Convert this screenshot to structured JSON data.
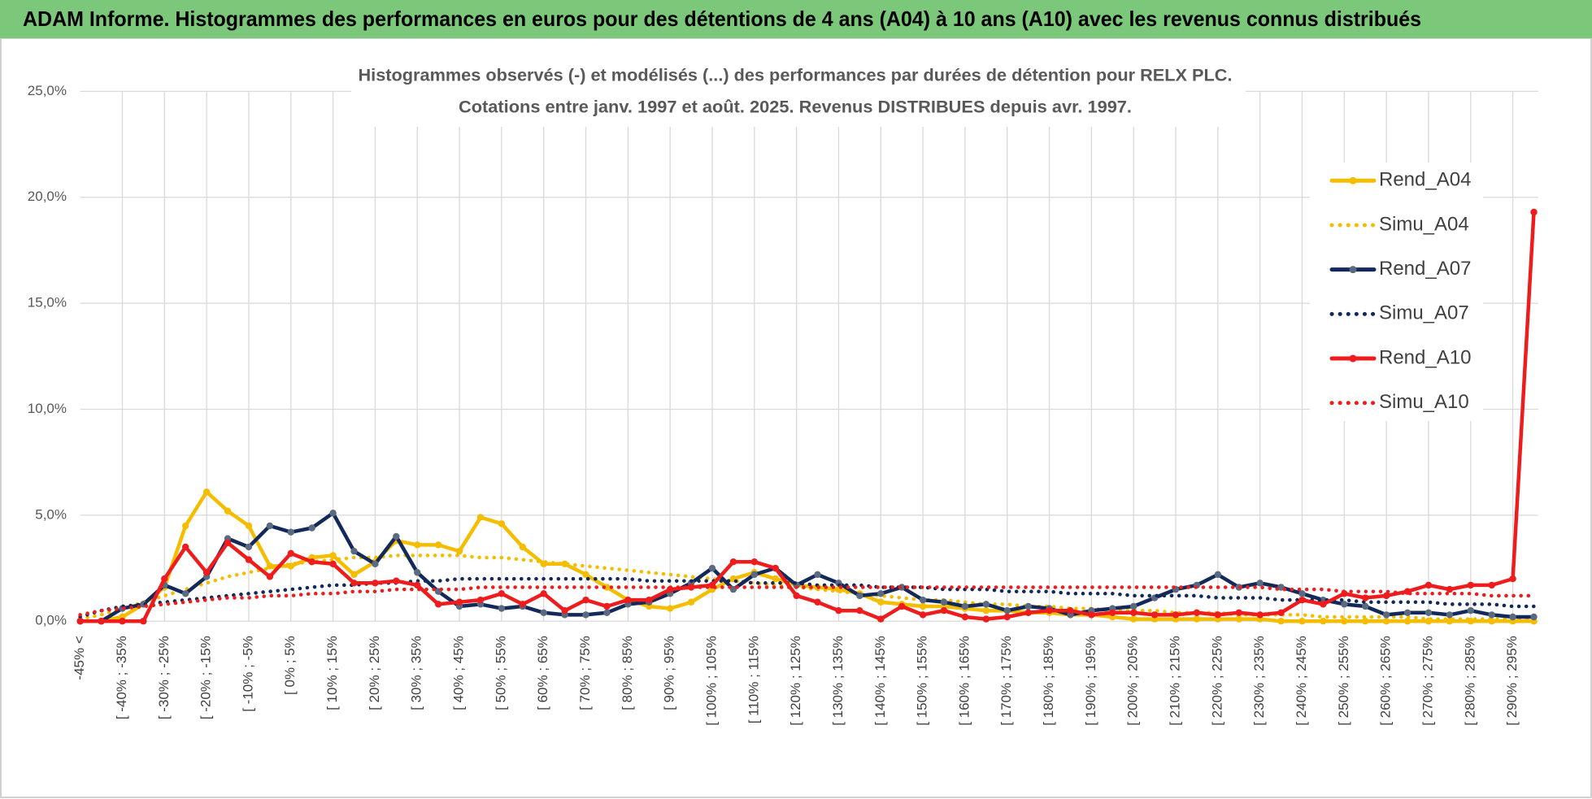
{
  "chart_data": {
    "type": "line",
    "title": "ADAM Informe. Histogrammes des performances en euros pour des détentions de 4 ans (A04) à 10 ans (A10) avec les revenus connus distribués",
    "chart_title": [
      "Histogrammes observés (-) et modélisés (...) des performances par durées de détention pour RELX PLC.",
      "Cotations entre janv. 1997 et août. 2025. Revenus DISTRIBUES depuis avr. 1997."
    ],
    "categories": [
      "-45% <",
      null,
      "[ -40% ; -35%",
      null,
      "[ -30% ; -25%",
      null,
      "[ -20% ; -15%",
      null,
      "[ -10% ; -5%",
      null,
      "[ 0% ; 5%",
      null,
      "[ 10% ; 15%",
      null,
      "[ 20% ; 25%",
      null,
      "[ 30% ; 35%",
      null,
      "[ 40% ; 45%",
      null,
      "[ 50% ; 55%",
      null,
      "[ 60% ; 65%",
      null,
      "[ 70% ; 75%",
      null,
      "[ 80% ; 85%",
      null,
      "[ 90% ; 95%",
      null,
      "[ 100% ; 105%",
      null,
      "[ 110% ; 115%",
      null,
      "[ 120% ; 125%",
      null,
      "[ 130% ; 135%",
      null,
      "[ 140% ; 145%",
      null,
      "[ 150% ; 155%",
      null,
      "[ 160% ; 165%",
      null,
      "[ 170% ; 175%",
      null,
      "[ 180% ; 185%",
      null,
      "[ 190% ; 195%",
      null,
      "[ 200% ; 205%",
      null,
      "[ 210% ; 215%",
      null,
      "[ 220% ; 225%",
      null,
      "[ 230% ; 235%",
      null,
      "[ 240% ; 245%",
      null,
      "[ 250% ; 255%",
      null,
      "[ 260% ; 265%",
      null,
      "[ 270% ; 275%",
      null,
      "[ 280% ; 285%",
      null,
      "[ 290% ; 295%",
      null
    ],
    "ylim": [
      0,
      25
    ],
    "yticks": [
      {
        "value": 0,
        "label": "0,0%"
      },
      {
        "value": 5,
        "label": "5,0%"
      },
      {
        "value": 10,
        "label": "10,0%"
      },
      {
        "value": 15,
        "label": "15,0%"
      },
      {
        "value": 20,
        "label": "20,0%"
      },
      {
        "value": 25,
        "label": "25,0%"
      }
    ],
    "grid": true,
    "legend": "right",
    "series": [
      {
        "name": "Rend_A04",
        "color": "#f5bd00",
        "style": "solid",
        "marker": true,
        "values": [
          0,
          0,
          0.2,
          0.8,
          1.6,
          4.5,
          6.1,
          5.2,
          4.5,
          2.6,
          2.6,
          3.0,
          3.1,
          2.2,
          2.8,
          3.8,
          3.6,
          3.6,
          3.3,
          4.9,
          4.6,
          3.5,
          2.7,
          2.7,
          2.2,
          1.6,
          1.0,
          0.7,
          0.6,
          0.9,
          1.5,
          2.0,
          2.3,
          2.0,
          1.7,
          1.6,
          1.5,
          1.3,
          0.9,
          0.8,
          0.7,
          0.7,
          0.6,
          0.5,
          0.5,
          0.4,
          0.4,
          0.3,
          0.3,
          0.2,
          0.1,
          0.1,
          0.1,
          0.1,
          0.1,
          0.1,
          0.1,
          0,
          0,
          0,
          0,
          0,
          0,
          0,
          0,
          0,
          0,
          0,
          0,
          0
        ]
      },
      {
        "name": "Simu_A04",
        "color": "#f5bd00",
        "style": "dotted",
        "marker": false,
        "values": [
          0.1,
          0.3,
          0.6,
          0.9,
          1.2,
          1.5,
          1.8,
          2.1,
          2.3,
          2.5,
          2.7,
          2.8,
          2.9,
          3.0,
          3.0,
          3.1,
          3.1,
          3.1,
          3.1,
          3.0,
          3.0,
          2.9,
          2.8,
          2.7,
          2.6,
          2.5,
          2.4,
          2.3,
          2.2,
          2.1,
          2.0,
          1.9,
          1.8,
          1.7,
          1.6,
          1.5,
          1.4,
          1.3,
          1.2,
          1.1,
          1.0,
          1.0,
          0.9,
          0.8,
          0.8,
          0.7,
          0.7,
          0.6,
          0.6,
          0.5,
          0.5,
          0.5,
          0.4,
          0.4,
          0.4,
          0.3,
          0.3,
          0.3,
          0.3,
          0.2,
          0.2,
          0.2,
          0.2,
          0.2,
          0.1,
          0.1,
          0.1,
          0.1,
          0.1,
          0.1
        ]
      },
      {
        "name": "Rend_A07",
        "color": "#13295a",
        "marker_color": "#5a6a80",
        "style": "solid",
        "marker": true,
        "values": [
          0,
          0,
          0.6,
          0.8,
          1.7,
          1.3,
          2.1,
          3.9,
          3.5,
          4.5,
          4.2,
          4.4,
          5.1,
          3.3,
          2.7,
          4.0,
          2.3,
          1.4,
          0.7,
          0.8,
          0.6,
          0.7,
          0.4,
          0.3,
          0.3,
          0.4,
          0.8,
          0.9,
          1.3,
          1.8,
          2.5,
          1.5,
          2.2,
          2.5,
          1.7,
          2.2,
          1.8,
          1.2,
          1.3,
          1.6,
          1.0,
          0.9,
          0.7,
          0.8,
          0.5,
          0.7,
          0.6,
          0.3,
          0.5,
          0.6,
          0.7,
          1.1,
          1.5,
          1.7,
          2.2,
          1.6,
          1.8,
          1.6,
          1.3,
          1.0,
          0.8,
          0.7,
          0.3,
          0.4,
          0.4,
          0.3,
          0.5,
          0.3,
          0.2,
          0.2
        ]
      },
      {
        "name": "Simu_A07",
        "color": "#13295a",
        "style": "dotted",
        "marker": false,
        "values": [
          0.2,
          0.5,
          0.7,
          0.8,
          0.9,
          1.0,
          1.1,
          1.2,
          1.3,
          1.4,
          1.5,
          1.6,
          1.7,
          1.7,
          1.8,
          1.8,
          1.9,
          1.9,
          2.0,
          2.0,
          2.0,
          2.0,
          2.0,
          2.0,
          2.0,
          2.0,
          2.0,
          1.9,
          1.9,
          1.9,
          1.9,
          1.9,
          1.8,
          1.8,
          1.8,
          1.7,
          1.7,
          1.7,
          1.6,
          1.6,
          1.6,
          1.5,
          1.5,
          1.5,
          1.4,
          1.4,
          1.4,
          1.3,
          1.3,
          1.3,
          1.2,
          1.2,
          1.2,
          1.2,
          1.1,
          1.1,
          1.1,
          1.0,
          1.0,
          1.0,
          1.0,
          0.9,
          0.9,
          0.9,
          0.9,
          0.8,
          0.8,
          0.8,
          0.7,
          0.7
        ]
      },
      {
        "name": "Rend_A10",
        "color": "#ee1c1c",
        "style": "solid",
        "marker": true,
        "values": [
          0,
          0,
          0,
          0,
          2.0,
          3.5,
          2.3,
          3.7,
          2.9,
          2.1,
          3.2,
          2.8,
          2.7,
          1.8,
          1.8,
          1.9,
          1.7,
          0.8,
          0.9,
          1.0,
          1.3,
          0.8,
          1.3,
          0.5,
          1.0,
          0.7,
          1.0,
          1.0,
          1.5,
          1.6,
          1.7,
          2.8,
          2.8,
          2.5,
          1.2,
          0.9,
          0.5,
          0.5,
          0.1,
          0.7,
          0.3,
          0.5,
          0.2,
          0.1,
          0.2,
          0.4,
          0.5,
          0.5,
          0.3,
          0.4,
          0.4,
          0.3,
          0.3,
          0.4,
          0.3,
          0.4,
          0.3,
          0.4,
          1.0,
          0.8,
          1.3,
          1.1,
          1.2,
          1.4,
          1.7,
          1.5,
          1.7,
          1.7,
          2.0,
          19.3
        ]
      },
      {
        "name": "Simu_A10",
        "color": "#ee1c1c",
        "style": "dotted",
        "marker": false,
        "values": [
          0.3,
          0.5,
          0.6,
          0.7,
          0.8,
          0.9,
          1.0,
          1.1,
          1.1,
          1.2,
          1.2,
          1.3,
          1.3,
          1.4,
          1.4,
          1.5,
          1.5,
          1.5,
          1.5,
          1.6,
          1.6,
          1.6,
          1.6,
          1.6,
          1.6,
          1.6,
          1.6,
          1.6,
          1.6,
          1.6,
          1.6,
          1.6,
          1.6,
          1.6,
          1.6,
          1.6,
          1.6,
          1.6,
          1.6,
          1.6,
          1.6,
          1.6,
          1.6,
          1.6,
          1.6,
          1.6,
          1.6,
          1.6,
          1.6,
          1.6,
          1.6,
          1.6,
          1.6,
          1.6,
          1.6,
          1.6,
          1.6,
          1.5,
          1.5,
          1.5,
          1.4,
          1.4,
          1.4,
          1.3,
          1.3,
          1.3,
          1.3,
          1.2,
          1.2,
          1.2
        ]
      }
    ]
  }
}
